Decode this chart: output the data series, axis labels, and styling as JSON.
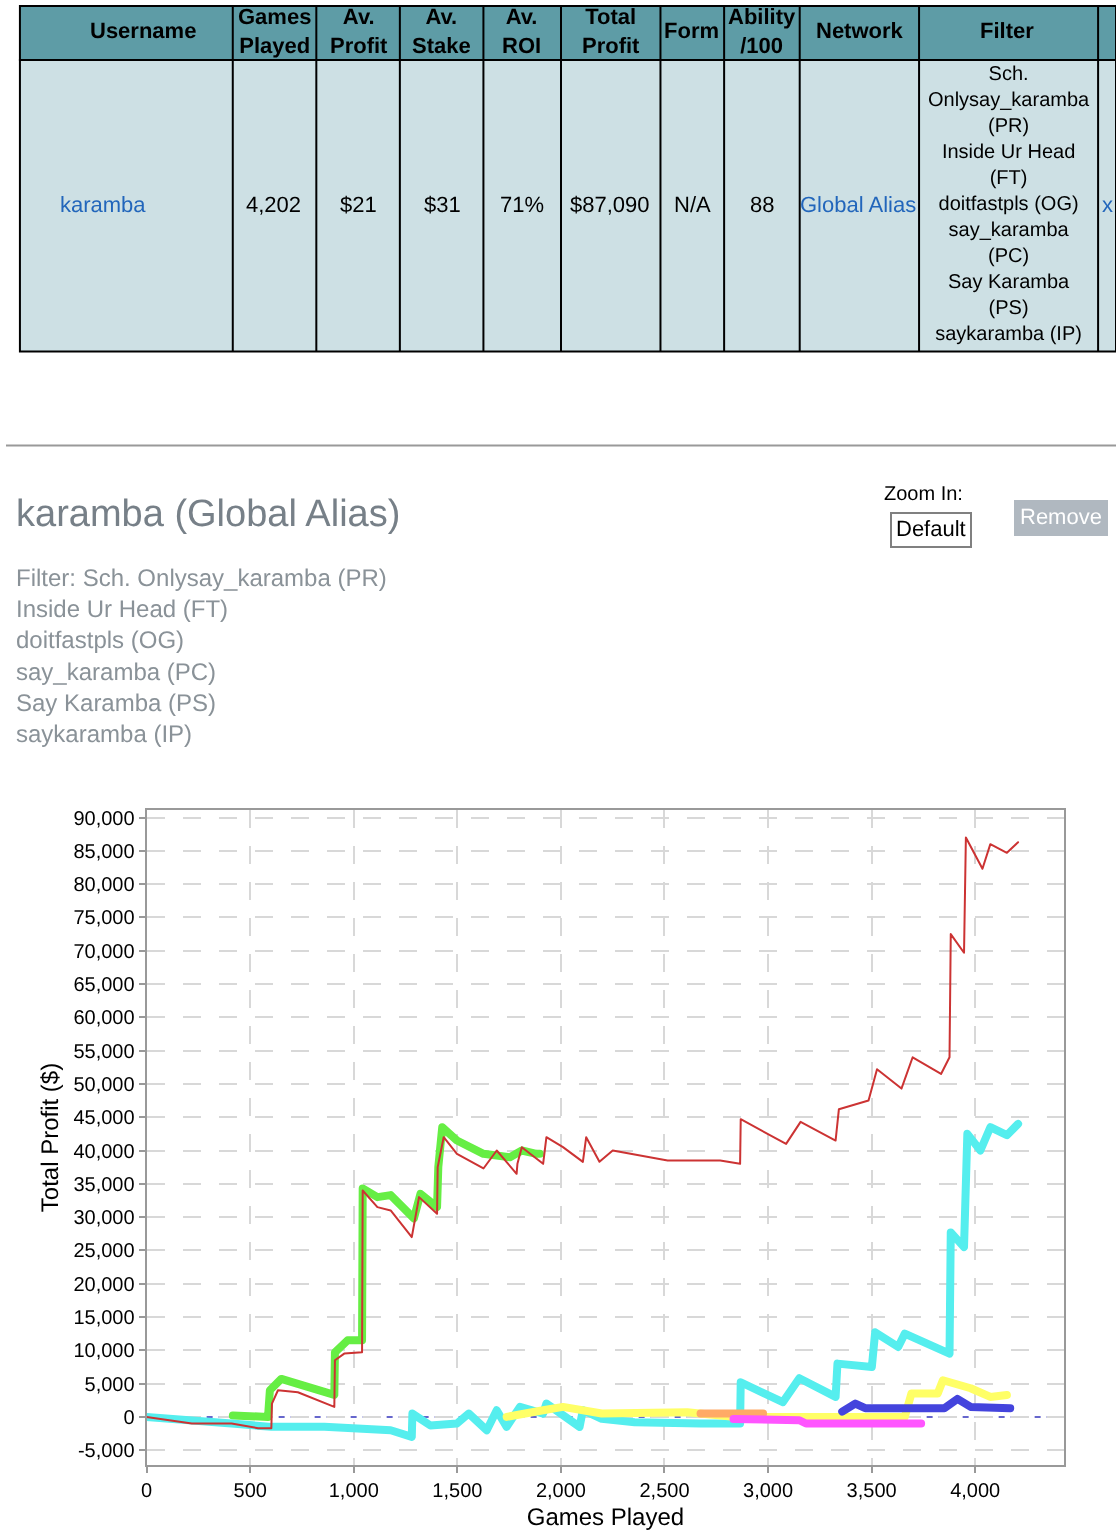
{
  "chart_data": [
    {
      "type": "other",
      "categories": [
        "Username",
        "Games\nPlayed",
        "Av.\nProfit",
        "Av.\nStake",
        "Av.\nROI",
        "Total\nProfit",
        "Form",
        "Ability\n/100",
        "Network",
        "Filter",
        null
      ],
      "annotations": [
        "karamba",
        "4,202",
        "$21",
        "$31",
        "71%",
        "$87,090",
        "N/A",
        "88",
        "Global Alias",
        "Sch.\nOnlysay_karamba\n(PR)\nInside Ur Head\n(FT)\ndoitfastpls (OG)\nsay_karamba\n(PC)\nSay Karamba\n(PS)\nsaykaramba (IP)",
        "x"
      ]
    },
    {
      "type": "line",
      "title": "karamba (Global Alias)",
      "subtitle": "Filter: Sch. Onlysay_karamba (PR)\nInside Ur Head (FT)\ndoitfastpls (OG)\nsay_karamba (PC)\nSay Karamba (PS)\nsaykaramba (IP)",
      "xlabel": "Games Played",
      "ylabel": "Total Profit ($)",
      "annotations": [
        "Zoom In:",
        "Default",
        "Remove"
      ],
      "xlim": [
        0,
        4430
      ],
      "ylim": [
        -7300,
        91200
      ],
      "xticks": [
        0,
        500,
        {
          "value": 1000,
          "label": "1,000"
        },
        {
          "value": 1500,
          "label": "1,500"
        },
        {
          "value": 2000,
          "label": "2,000"
        },
        {
          "value": 2500,
          "label": "2,500"
        },
        {
          "value": 3000,
          "label": "3,000"
        },
        {
          "value": 3500,
          "label": "3,500"
        },
        {
          "value": 4000,
          "label": "4,000"
        }
      ],
      "yticks": [
        {
          "value": -5000,
          "label": "-5,000"
        },
        0,
        {
          "value": 5000,
          "label": "5,000"
        },
        {
          "value": 10000,
          "label": "10,000"
        },
        {
          "value": 15000,
          "label": "15,000"
        },
        {
          "value": 20000,
          "label": "20,000"
        },
        {
          "value": 25000,
          "label": "25,000"
        },
        {
          "value": 30000,
          "label": "30,000"
        },
        {
          "value": 35000,
          "label": "35,000"
        },
        {
          "value": 40000,
          "label": "40,000"
        },
        {
          "value": 45000,
          "label": "45,000"
        },
        {
          "value": 50000,
          "label": "50,000"
        },
        {
          "value": 55000,
          "label": "55,000"
        },
        {
          "value": 60000,
          "label": "60,000"
        },
        {
          "value": 65000,
          "label": "65,000"
        },
        {
          "value": 70000,
          "label": "70,000"
        },
        {
          "value": 75000,
          "label": "75,000"
        },
        {
          "value": 80000,
          "label": "80,000"
        },
        {
          "value": 85000,
          "label": "85,000"
        },
        {
          "value": 90000,
          "label": "90,000"
        }
      ],
      "grid": true,
      "marker": "none",
      "line_style": "solid",
      "ref_lines": [
        {
          "axis": "y",
          "value": 0,
          "color": "#6666cc",
          "line_style": "dotted"
        }
      ],
      "series": [
        {
          "color": "#66ee44",
          "x": [
            416,
            586,
            595,
            650,
            906,
            909,
            970,
            1040,
            1043,
            1114,
            1178,
            1290,
            1322,
            1402,
            1408,
            1427,
            1498,
            1626,
            1754,
            1811,
            1882,
            1898
          ],
          "values": [
            200,
            0,
            4000,
            5700,
            3300,
            9700,
            11500,
            11500,
            34300,
            33000,
            33300,
            29800,
            33500,
            31500,
            37500,
            43500,
            41500,
            39500,
            39000,
            40000,
            39500,
            39500
          ]
        },
        {
          "color": "#55eeee",
          "x": [
            0,
            410,
            602,
            858,
            1178,
            1280,
            1283,
            1370,
            1498,
            1555,
            1642,
            1690,
            1738,
            1802,
            1914,
            1930,
            2090,
            2106,
            2197,
            2356,
            2674,
            2865,
            2868,
            3071,
            3151,
            3326,
            3335,
            3501,
            3517,
            3628,
            3660,
            3876,
            3882,
            3946,
            3962,
            4025,
            4073,
            4153,
            4207
          ],
          "values": [
            0,
            -1000,
            -1500,
            -1500,
            -2000,
            -3000,
            500,
            -1300,
            -1000,
            500,
            -2000,
            1000,
            -1500,
            1500,
            500,
            2000,
            -1500,
            1000,
            -300,
            -800,
            -1000,
            -1000,
            5200,
            2200,
            5800,
            3000,
            8000,
            7500,
            12700,
            10500,
            12500,
            9500,
            27700,
            25500,
            42500,
            40000,
            43500,
            42300,
            44000
          ]
        },
        {
          "color": "#ffff66",
          "x": [
            1738,
            1914,
            2010,
            2197,
            2610,
            2833,
            3660,
            3692,
            3819,
            3844,
            3978,
            4073,
            4153
          ],
          "values": [
            0,
            1000,
            1500,
            500,
            700,
            0,
            0,
            3500,
            3500,
            5500,
            4300,
            3000,
            3300
          ]
        },
        {
          "color": "#ffaa66",
          "x": [
            2674,
            2976
          ],
          "values": [
            500,
            500
          ]
        },
        {
          "color": "#ff55ff",
          "x": [
            2833,
            3151,
            3183,
            3739
          ],
          "values": [
            -300,
            -500,
            -1000,
            -1000
          ]
        },
        {
          "color": "#4444dd",
          "x": [
            3358,
            3421,
            3469,
            3851,
            3914,
            3978,
            4169
          ],
          "values": [
            800,
            2000,
            1300,
            1300,
            2700,
            1500,
            1300
          ]
        },
        {
          "color": "#cc3333",
          "x": [
            0,
            218,
            410,
            538,
            602,
            605,
            634,
            730,
            906,
            909,
            954,
            1040,
            1043,
            1114,
            1178,
            1280,
            1315,
            1402,
            1405,
            1434,
            1498,
            1626,
            1690,
            1786,
            1790,
            1811,
            1914,
            1930,
            2010,
            2106,
            2122,
            2186,
            2250,
            2515,
            2769,
            2865,
            2868,
            3087,
            3157,
            3326,
            3342,
            3485,
            3526,
            3644,
            3698,
            3835,
            3876,
            3882,
            3946,
            3955,
            4035,
            4073,
            4153,
            4207
          ],
          "values": [
            0,
            -1000,
            -1000,
            -1700,
            -1700,
            2000,
            4000,
            3700,
            1500,
            8500,
            9500,
            9700,
            34000,
            31500,
            31000,
            27000,
            33000,
            30500,
            37500,
            42000,
            39500,
            37300,
            40000,
            36500,
            38000,
            40500,
            38000,
            42000,
            40500,
            38300,
            42000,
            38300,
            40000,
            38500,
            38500,
            38000,
            44700,
            41000,
            44300,
            41500,
            46200,
            47500,
            52200,
            49300,
            54000,
            51500,
            54000,
            72500,
            69700,
            87000,
            82300,
            86000,
            84700,
            86300
          ]
        }
      ]
    }
  ]
}
